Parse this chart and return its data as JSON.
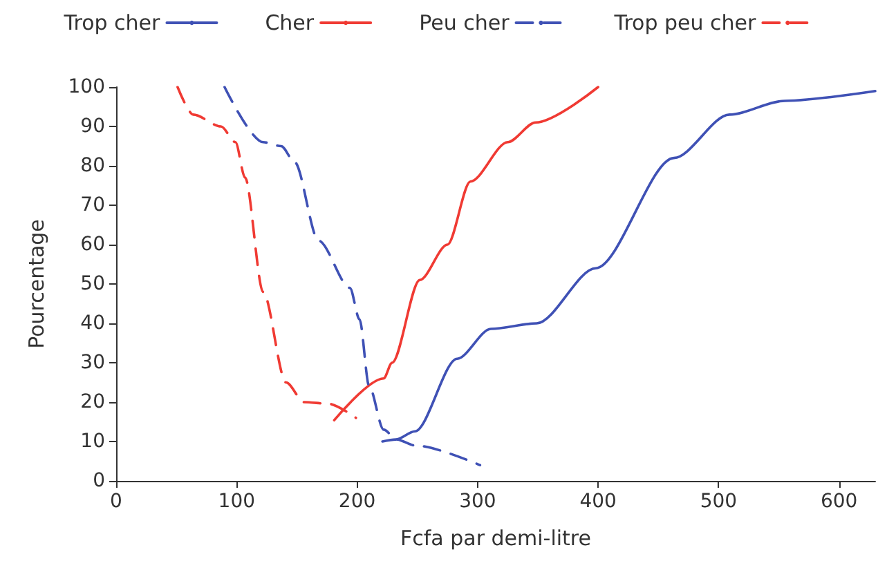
{
  "chart_data": {
    "type": "line",
    "xlabel": "Fcfa par demi-litre",
    "ylabel": "Pourcentage",
    "xlim": [
      0,
      630
    ],
    "ylim": [
      0,
      100
    ],
    "xticks": [
      0,
      100,
      200,
      300,
      400,
      500,
      600
    ],
    "yticks": [
      0,
      10,
      20,
      30,
      40,
      50,
      60,
      70,
      80,
      90,
      100
    ],
    "grid": false,
    "legend": "top",
    "marker": "none",
    "series": [
      {
        "name": "Trop cher",
        "color": "#3f51b5",
        "line_style": "solid",
        "x": [
          221,
          232,
          248,
          283,
          311,
          349,
          398,
          463,
          509,
          555,
          630
        ],
        "values": [
          10,
          10.5,
          12.6,
          31,
          38.6,
          40,
          54,
          82,
          93,
          96.5,
          99
        ]
      },
      {
        "name": "Cher",
        "color": "#f03a33",
        "line_style": "solid",
        "x": [
          181,
          222,
          229,
          252,
          275,
          294,
          325,
          348,
          400
        ],
        "values": [
          15.4,
          26,
          30,
          51,
          60,
          76,
          86,
          91,
          100
        ]
      },
      {
        "name": "Peu cher",
        "color": "#3f51b5",
        "line_style": "dashed",
        "x": [
          90,
          122,
          137,
          148,
          168,
          194,
          202,
          210,
          222,
          233,
          248,
          302
        ],
        "values": [
          100,
          86,
          85,
          81,
          61,
          49,
          41,
          24,
          13,
          10.5,
          9,
          4
        ]
      },
      {
        "name": "Trop peu cher",
        "color": "#f03a33",
        "line_style": "dashed",
        "x": [
          51,
          64,
          87,
          99,
          107,
          122,
          141,
          156,
          176,
          199
        ],
        "values": [
          100,
          93,
          90,
          86,
          77,
          48,
          25,
          20,
          19.6,
          16
        ]
      }
    ]
  }
}
